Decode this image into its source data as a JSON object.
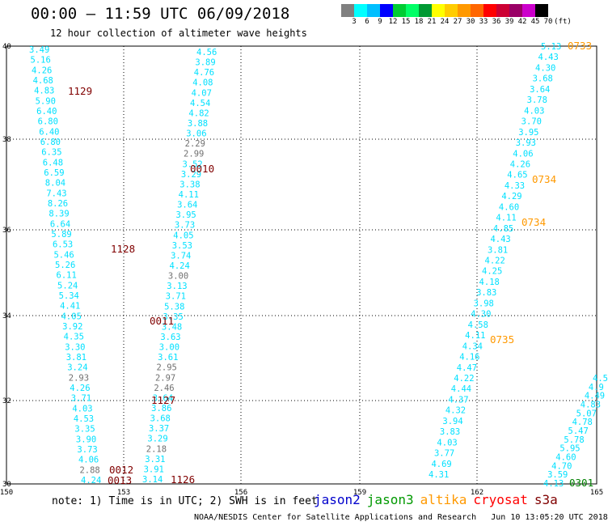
{
  "header": {
    "title": "00:00 – 11:59 UTC 06/09/2018",
    "subtitle": "12 hour collection of altimeter wave heights"
  },
  "colorbar": {
    "colors": [
      "#808080",
      "#00ffff",
      "#00bfff",
      "#0000ff",
      "#00cc33",
      "#00ff66",
      "#009933",
      "#ffff00",
      "#ffcc00",
      "#ff9900",
      "#ff6600",
      "#ff0000",
      "#cc0033",
      "#990066",
      "#cc00cc",
      "#000000"
    ],
    "labels": [
      "3",
      "6",
      "9",
      "12",
      "15",
      "18",
      "21",
      "24",
      "27",
      "30",
      "33",
      "36",
      "39",
      "42",
      "45",
      "70",
      "(ft)"
    ]
  },
  "map": {
    "lon_ticks": [
      "150",
      "153",
      "156",
      "159",
      "162",
      "165"
    ],
    "lat_ticks": [
      "30",
      "32",
      "34",
      "36",
      "38",
      "40"
    ],
    "colors": {
      "jason3": "#00e0ff",
      "gray": "#707070",
      "time_red": "#800000",
      "time_orange": "#ff9900",
      "time_green": "#008000"
    },
    "track_a": [
      "3.49",
      "5.16",
      "4.26",
      "4.68",
      "4.83",
      "5.90",
      "6.40",
      "6.80",
      "6.40",
      "6.80",
      "6.35",
      "6.48",
      "6.59",
      "8.04",
      "7.43",
      "8.26",
      "8.39",
      "6.64",
      "5.89",
      "6.53",
      "5.46",
      "5.26",
      "6.11",
      "5.24",
      "5.34",
      "4.41",
      "4.05",
      "3.92",
      "4.35",
      "3.30",
      "3.81",
      "3.24",
      "2.93",
      "4.26",
      "3.71",
      "4.03",
      "4.53",
      "3.35",
      "3.90",
      "3.73",
      "4.06",
      "2.88",
      "4.24"
    ],
    "track_a_gray": [
      32,
      41
    ],
    "track_b": [
      "4.56",
      "3.89",
      "4.76",
      "4.08",
      "4.07",
      "4.54",
      "4.82",
      "3.88",
      "3.06",
      "2.29",
      "2.99",
      "3.52",
      "3.29",
      "3.38",
      "4.11",
      "3.64",
      "3.95",
      "3.73",
      "4.05",
      "3.53",
      "3.74",
      "4.24",
      "3.00",
      "3.13",
      "3.71",
      "5.38",
      "3.35",
      "3.48",
      "3.63",
      "3.00",
      "3.61",
      "2.95",
      "2.97",
      "2.46",
      "3.64",
      "3.86",
      "3.68",
      "3.37",
      "3.29",
      "2.18",
      "3.31",
      "3.91",
      "3.14"
    ],
    "track_b_gray": [
      9,
      10,
      22,
      31,
      32,
      33,
      39
    ],
    "track_c": [
      "5.13",
      "4.43",
      "4.30",
      "3.68",
      "3.64",
      "3.78",
      "4.03",
      "3.70",
      "3.95",
      "3.93",
      "4.06",
      "4.26",
      "4.65",
      "4.33",
      "4.29",
      "4.60",
      "4.11",
      "4.85",
      "4.43",
      "3.81",
      "4.22",
      "4.25",
      "4.18",
      "3.83",
      "3.98",
      "4.30",
      "4.58",
      "4.11",
      "4.34",
      "4.16",
      "4.47",
      "4.22",
      "4.44",
      "4.37",
      "4.32",
      "3.94",
      "3.83",
      "4.03",
      "3.77",
      "4.69",
      "4.31"
    ],
    "track_d": [
      "4.5",
      "4.9",
      "4.49",
      "4.83",
      "5.07",
      "4.78",
      "5.47",
      "5.78",
      "5.95",
      "4.60",
      "4.70",
      "3.59",
      "4.13"
    ],
    "time_labels": [
      {
        "text": "1129",
        "color": "time_red"
      },
      {
        "text": "0010",
        "color": "time_red"
      },
      {
        "text": "1128",
        "color": "time_red"
      },
      {
        "text": "0011",
        "color": "time_red"
      },
      {
        "text": "1127",
        "color": "time_red"
      },
      {
        "text": "0012",
        "color": "time_red"
      },
      {
        "text": "0013",
        "color": "time_red"
      },
      {
        "text": "1126",
        "color": "time_red"
      },
      {
        "text": "0733",
        "color": "time_orange"
      },
      {
        "text": "0734",
        "color": "time_orange"
      },
      {
        "text": "0734",
        "color": "time_orange"
      },
      {
        "text": "0735",
        "color": "time_orange"
      },
      {
        "text": "0301",
        "color": "time_green"
      }
    ]
  },
  "note": "note: 1) Time is in UTC; 2) SWH is in feet",
  "legend": [
    {
      "label": "jason2",
      "color": "#0000cc"
    },
    {
      "label": "jason3",
      "color": "#009900"
    },
    {
      "label": "altika",
      "color": "#ff9900"
    },
    {
      "label": "cryosat",
      "color": "#ff0000"
    },
    {
      "label": "s3a",
      "color": "#800000"
    }
  ],
  "footer": "NOAA/NESDIS Center for Satellite Applications and Research   Jun 10 13:05:20 UTC 2018"
}
